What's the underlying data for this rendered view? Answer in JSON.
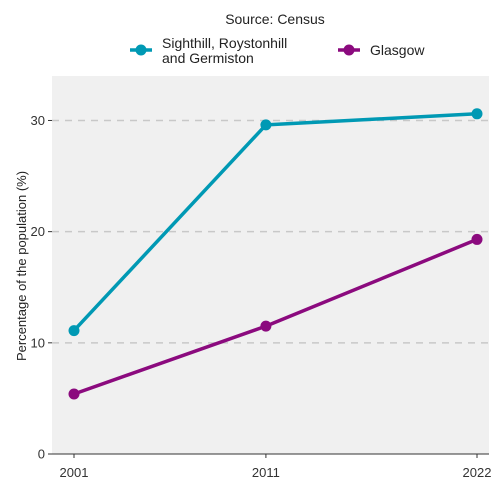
{
  "chart_data": {
    "type": "line",
    "title": "Source: Census",
    "xlabel": "",
    "ylabel": "Percentage of the population (%)",
    "x": [
      2001,
      2011,
      2022
    ],
    "x_tick_labels": [
      "2001",
      "2011",
      "2022"
    ],
    "y_ticks": [
      0,
      10,
      20,
      30
    ],
    "y_tick_labels": [
      "0",
      "10",
      "20",
      "30"
    ],
    "ylim": [
      0,
      34
    ],
    "xlim": [
      2001,
      2022
    ],
    "grid": "horizontal dashed",
    "legend_position": "top",
    "series": [
      {
        "name_lines": [
          "Sighthill, Roystonhill",
          "and Germiston"
        ],
        "values": [
          11.1,
          29.6,
          30.6
        ],
        "color": "#0099B4"
      },
      {
        "name_lines": [
          "Glasgow"
        ],
        "values": [
          5.4,
          11.5,
          19.3
        ],
        "color": "#8B0A7E"
      }
    ],
    "colors": {
      "panel_background": "#F0F0F0",
      "grid": "#C8C8C8",
      "axis": "#333333"
    }
  }
}
